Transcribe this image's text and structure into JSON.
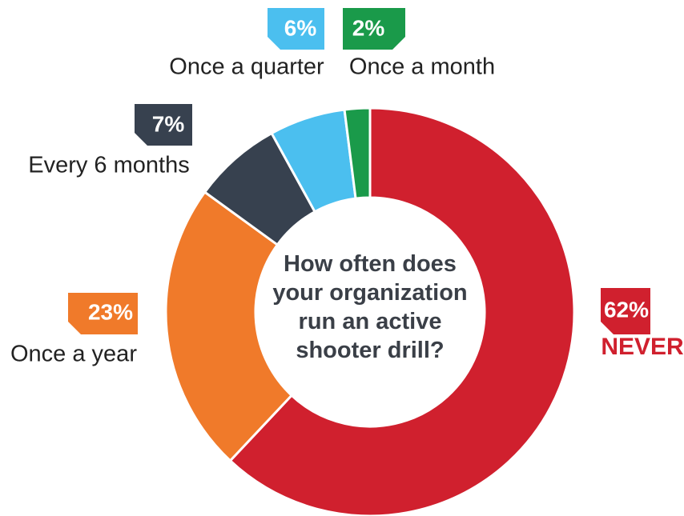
{
  "chart_data": {
    "type": "donut",
    "title": "How often does your organization run an active shooter drill?",
    "categories": [
      "NEVER",
      "Once a year",
      "Every 6 months",
      "Once a quarter",
      "Once a month"
    ],
    "values": [
      62,
      23,
      7,
      6,
      2
    ],
    "value_labels": [
      "62%",
      "23%",
      "7%",
      "6%",
      "2%"
    ],
    "colors": [
      "#d0202e",
      "#f07a2a",
      "#37414f",
      "#4bbfef",
      "#1a9a4a"
    ]
  }
}
